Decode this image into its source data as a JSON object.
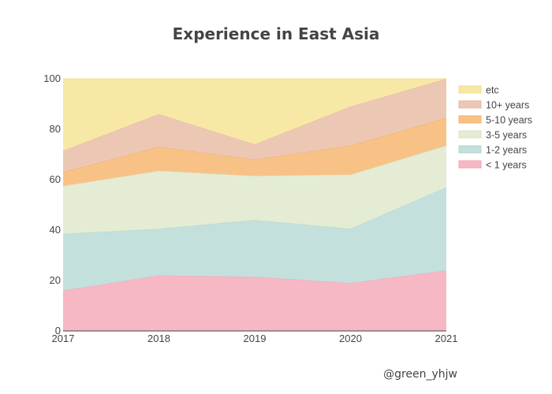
{
  "chart_data": {
    "type": "area",
    "stacked": true,
    "title": "Experience in East Asia",
    "xlabel": "",
    "ylabel": "",
    "x": [
      2017,
      2018,
      2019,
      2020,
      2021
    ],
    "xticks": [
      "2017",
      "2018",
      "2019",
      "2020",
      "2021"
    ],
    "yticks": [
      "0",
      "20",
      "40",
      "60",
      "80",
      "100"
    ],
    "ylim": [
      0,
      100
    ],
    "grid": false,
    "legend_position": "right",
    "series": [
      {
        "name": "< 1 years",
        "color": "#f6b8c4",
        "line": "#f4a7b6",
        "values": [
          16,
          22,
          21.5,
          19,
          24
        ]
      },
      {
        "name": "1-2 years",
        "color": "#c4e0dc",
        "line": "#b2d7d2",
        "values": [
          22.5,
          18.5,
          22.5,
          21.5,
          33
        ]
      },
      {
        "name": "3-5 years",
        "color": "#e4ecd4",
        "line": "#d8e4c4",
        "values": [
          19,
          23,
          17.5,
          21.5,
          16.5
        ]
      },
      {
        "name": "5-10 years",
        "color": "#f8c287",
        "line": "#f4ae66",
        "values": [
          5.5,
          9.5,
          6.5,
          11.5,
          11
        ]
      },
      {
        "name": "10+ years",
        "color": "#ecc8b4",
        "line": "#e8b8a0",
        "values": [
          8.5,
          13,
          6,
          15.5,
          15.5
        ]
      },
      {
        "name": "etc",
        "color": "#f8e8a6",
        "line": "#f4dd8a",
        "values": [
          28.5,
          14,
          26,
          11,
          0
        ]
      }
    ]
  },
  "credit": "@green_yhjw"
}
